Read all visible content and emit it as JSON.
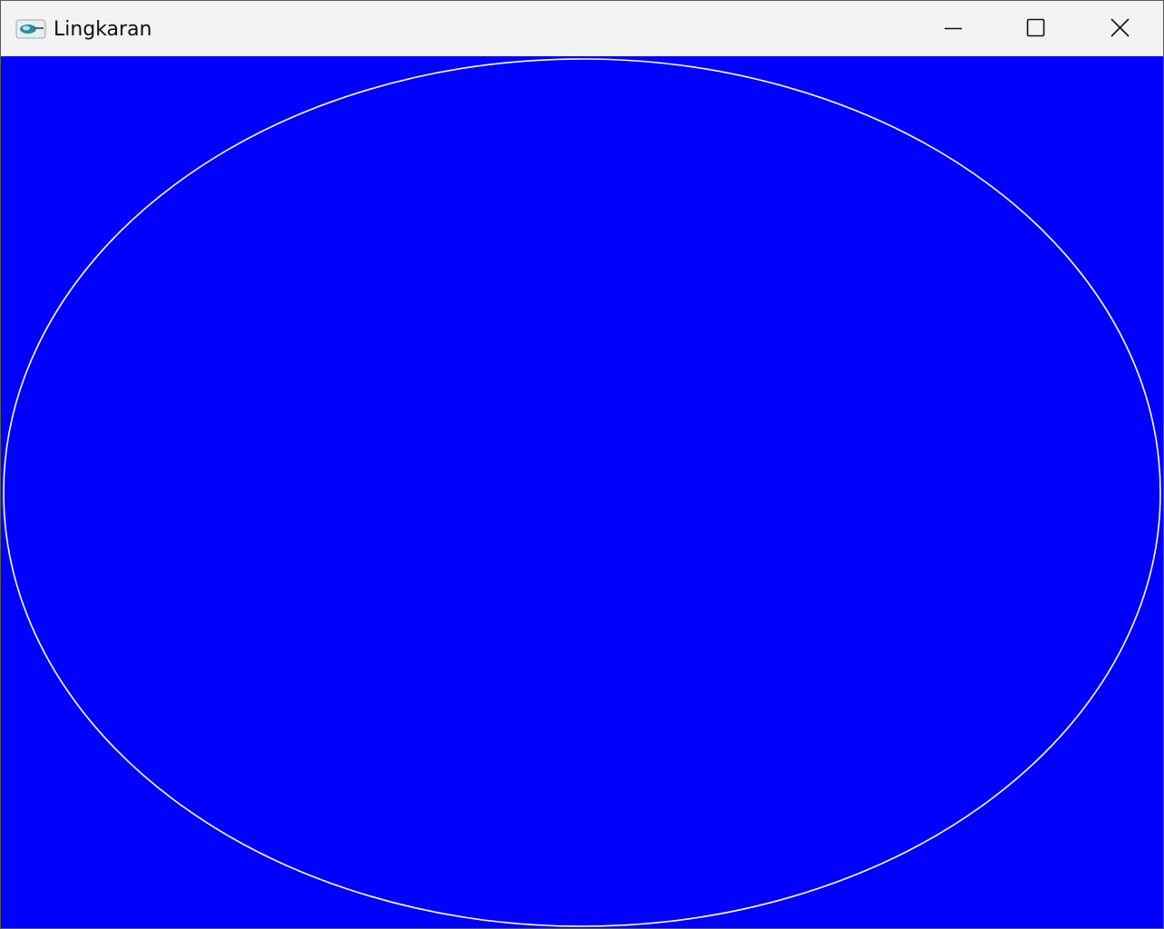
{
  "window": {
    "title": "Lingkaran"
  },
  "titlebar_controls": {
    "minimize_icon": "minimize-icon",
    "maximize_icon": "maximize-icon",
    "close_icon": "close-icon"
  },
  "canvas": {
    "background_color": "#0000FF",
    "shape": "ellipse",
    "stroke_color": "#FFFFFF"
  }
}
